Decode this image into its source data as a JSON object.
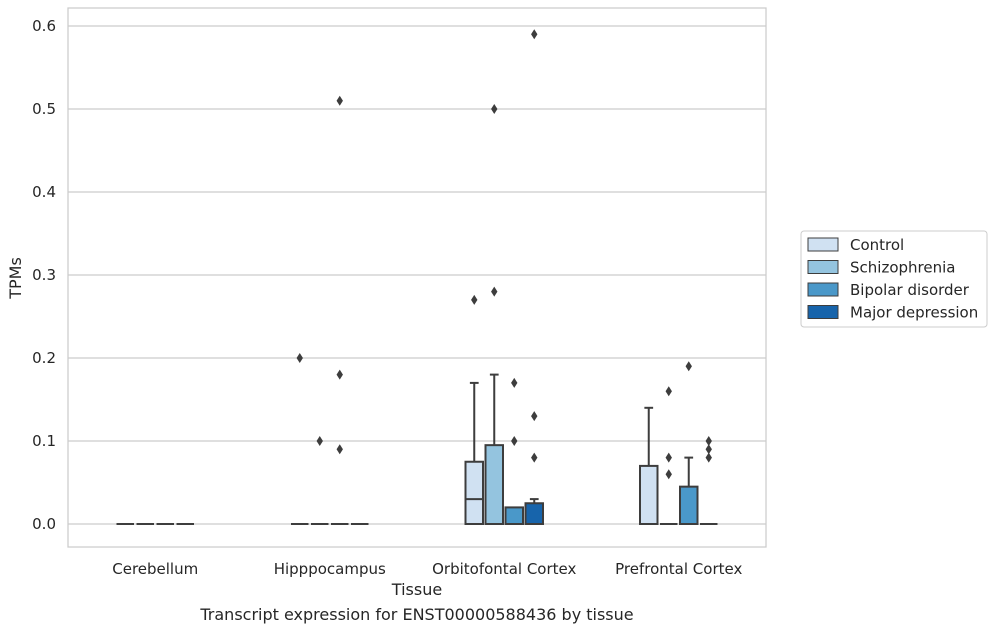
{
  "caption": "Transcript expression for ENST00000588436 by tissue",
  "chart_data": {
    "type": "box",
    "xlabel": "Tissue",
    "ylabel": "TPMs",
    "ylim": [
      -0.03,
      0.62
    ],
    "yticks": [
      "0.0",
      "0.1",
      "0.2",
      "0.3",
      "0.4",
      "0.5",
      "0.6"
    ],
    "grid": true,
    "legend_position": "right",
    "categories": [
      "Cerebellum",
      "Hipppocampus",
      "Orbitofontal Cortex",
      "Prefrontal Cortex"
    ],
    "series": [
      {
        "name": "Control",
        "color": "#d0e1f2",
        "boxes": [
          {
            "q1": 0,
            "median": 0,
            "q3": 0,
            "whisker_low": 0,
            "whisker_high": 0,
            "outliers": []
          },
          {
            "q1": 0,
            "median": 0,
            "q3": 0,
            "whisker_low": 0,
            "whisker_high": 0,
            "outliers": [
              0.2
            ]
          },
          {
            "q1": 0,
            "median": 0.03,
            "q3": 0.075,
            "whisker_low": 0,
            "whisker_high": 0.17,
            "outliers": [
              0.27
            ]
          },
          {
            "q1": 0,
            "median": 0,
            "q3": 0.07,
            "whisker_low": 0,
            "whisker_high": 0.14,
            "outliers": []
          }
        ]
      },
      {
        "name": "Schizophrenia",
        "color": "#94c4df",
        "boxes": [
          {
            "q1": 0,
            "median": 0,
            "q3": 0,
            "whisker_low": 0,
            "whisker_high": 0,
            "outliers": []
          },
          {
            "q1": 0,
            "median": 0,
            "q3": 0,
            "whisker_low": 0,
            "whisker_high": 0,
            "outliers": [
              0.1
            ]
          },
          {
            "q1": 0,
            "median": 0,
            "q3": 0.095,
            "whisker_low": 0,
            "whisker_high": 0.18,
            "outliers": [
              0.28,
              0.5
            ]
          },
          {
            "q1": 0,
            "median": 0,
            "q3": 0,
            "whisker_low": 0,
            "whisker_high": 0,
            "outliers": [
              0.06,
              0.08,
              0.16
            ]
          }
        ]
      },
      {
        "name": "Bipolar disorder",
        "color": "#4a98c9",
        "boxes": [
          {
            "q1": 0,
            "median": 0,
            "q3": 0,
            "whisker_low": 0,
            "whisker_high": 0,
            "outliers": []
          },
          {
            "q1": 0,
            "median": 0,
            "q3": 0,
            "whisker_low": 0,
            "whisker_high": 0,
            "outliers": [
              0.18,
              0.09,
              0.51
            ]
          },
          {
            "q1": 0,
            "median": 0,
            "q3": 0.02,
            "whisker_low": 0,
            "whisker_high": 0.02,
            "outliers": [
              0.1,
              0.17
            ]
          },
          {
            "q1": 0,
            "median": 0,
            "q3": 0.045,
            "whisker_low": 0,
            "whisker_high": 0.08,
            "outliers": [
              0.19
            ]
          }
        ]
      },
      {
        "name": "Major depression",
        "color": "#1764ab",
        "boxes": [
          {
            "q1": 0,
            "median": 0,
            "q3": 0,
            "whisker_low": 0,
            "whisker_high": 0,
            "outliers": []
          },
          {
            "q1": 0,
            "median": 0,
            "q3": 0,
            "whisker_low": 0,
            "whisker_high": 0,
            "outliers": []
          },
          {
            "q1": 0,
            "median": 0,
            "q3": 0.025,
            "whisker_low": 0,
            "whisker_high": 0.03,
            "outliers": [
              0.08,
              0.13,
              0.59
            ]
          },
          {
            "q1": 0,
            "median": 0,
            "q3": 0,
            "whisker_low": 0,
            "whisker_high": 0,
            "outliers": [
              0.08,
              0.09,
              0.1
            ]
          }
        ]
      }
    ]
  }
}
